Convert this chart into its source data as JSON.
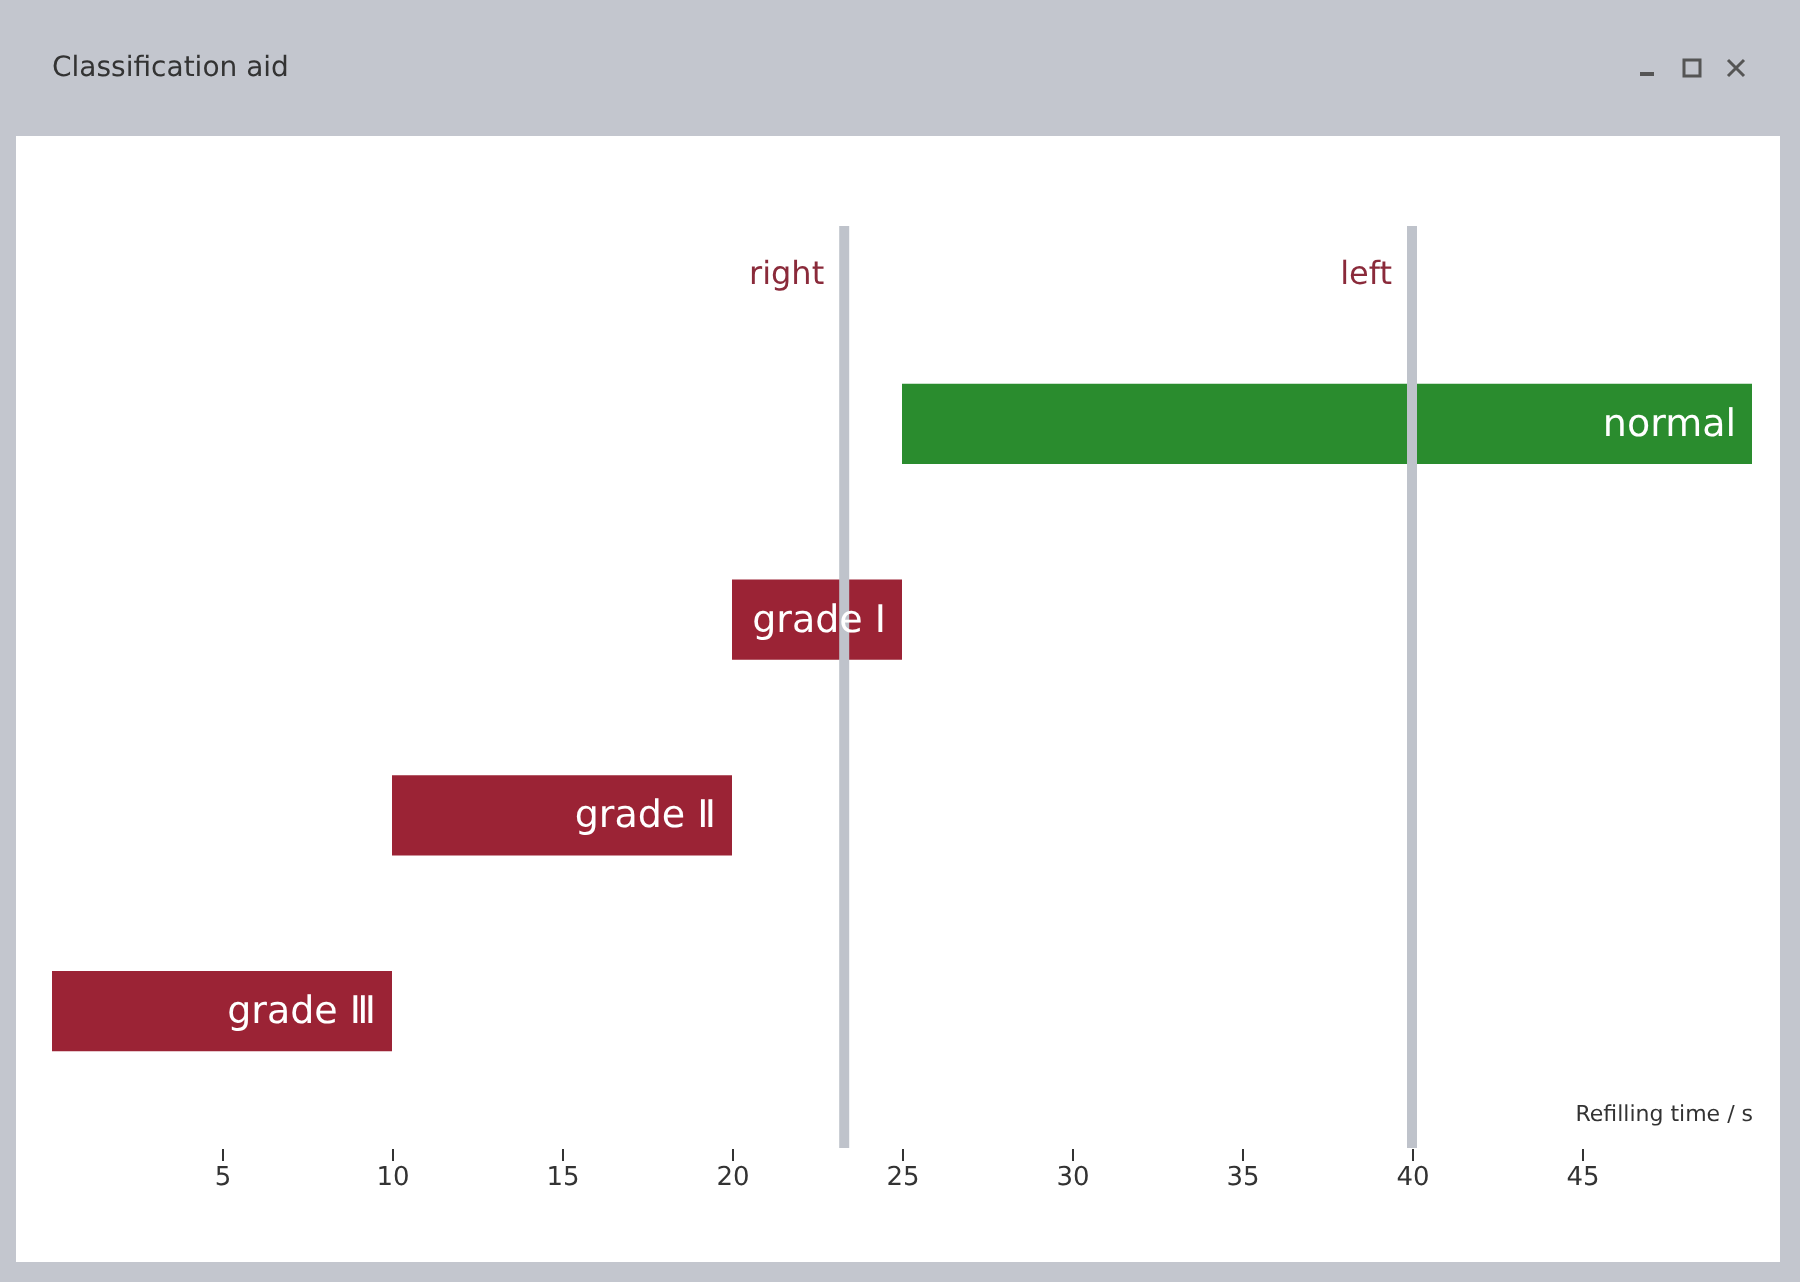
{
  "chart_data": {
    "type": "bar",
    "title": "Classification aid",
    "orientation": "horizontal",
    "categories": [
      "normal",
      "grade Ⅰ",
      "grade Ⅱ",
      "grade Ⅲ"
    ],
    "base": [
      25,
      20,
      10,
      0
    ],
    "values": [
      25,
      5,
      10,
      10
    ],
    "colors": [
      "#2a8c2e",
      "#9b2335",
      "#9b2335",
      "#9b2335"
    ],
    "xlabel": "Refilling time / s",
    "xlim": [
      0,
      50
    ],
    "xticks": [
      5,
      10,
      15,
      20,
      25,
      30,
      35,
      40,
      45
    ],
    "ref_lines": [
      {
        "axis": "x",
        "value": 23.3,
        "label": "right"
      },
      {
        "axis": "x",
        "value": 40,
        "label": "left"
      }
    ],
    "grid": false
  }
}
